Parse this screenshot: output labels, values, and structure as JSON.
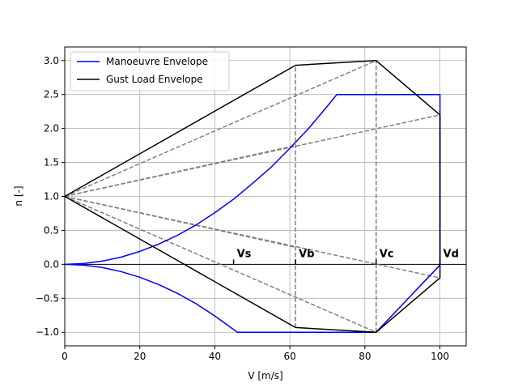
{
  "chart_data": {
    "type": "line",
    "xlabel": "V [m/s]",
    "ylabel": "n [-]",
    "xlim": [
      0,
      107
    ],
    "ylim": [
      -1.2,
      3.2
    ],
    "xticks": [
      0,
      20,
      40,
      60,
      80,
      100
    ],
    "yticks": [
      -1.0,
      -0.5,
      0.0,
      0.5,
      1.0,
      1.5,
      2.0,
      2.5,
      3.0
    ],
    "grid": true,
    "legend_position": "top-left",
    "colors": {
      "manoeuvre": "#0000ff",
      "gust": "#000000",
      "gust_lines": "#808080",
      "zero": "#000000",
      "grid": "#b0b0b0"
    },
    "series": [
      {
        "name": "Manoeuvre Envelope",
        "color": "#0000ff",
        "points": [
          [
            0,
            0
          ],
          [
            5,
            0.012
          ],
          [
            10,
            0.047
          ],
          [
            15,
            0.106
          ],
          [
            20,
            0.19
          ],
          [
            25,
            0.297
          ],
          [
            30,
            0.427
          ],
          [
            35,
            0.58
          ],
          [
            40,
            0.76
          ],
          [
            45,
            0.96
          ],
          [
            50,
            1.19
          ],
          [
            55,
            1.43
          ],
          [
            60,
            1.71
          ],
          [
            65,
            2.0
          ],
          [
            70,
            2.33
          ],
          [
            72.5,
            2.5
          ],
          [
            100,
            2.5
          ],
          [
            100,
            -0.01
          ],
          [
            83,
            -1.0
          ],
          [
            46,
            -1.0
          ],
          [
            45,
            -0.96
          ],
          [
            40,
            -0.76
          ],
          [
            35,
            -0.58
          ],
          [
            30,
            -0.427
          ],
          [
            25,
            -0.297
          ],
          [
            20,
            -0.19
          ],
          [
            15,
            -0.106
          ],
          [
            10,
            -0.047
          ],
          [
            5,
            -0.012
          ],
          [
            0,
            0
          ]
        ]
      },
      {
        "name": "Gust Load Envelope",
        "color": "#000000",
        "points": [
          [
            0,
            1.0
          ],
          [
            61.5,
            2.93
          ],
          [
            83,
            3.0
          ],
          [
            100,
            2.2
          ],
          [
            100,
            -0.2
          ],
          [
            83,
            -1.0
          ],
          [
            61.5,
            -0.93
          ],
          [
            0,
            1.0
          ]
        ]
      }
    ],
    "gust_lines": [
      [
        [
          0,
          1.0
        ],
        [
          61.5,
          1.75
        ]
      ],
      [
        [
          0,
          1.0
        ],
        [
          83,
          3.0
        ]
      ],
      [
        [
          0,
          1.0
        ],
        [
          100,
          2.2
        ]
      ],
      [
        [
          0,
          1.0
        ],
        [
          100,
          -0.2
        ]
      ],
      [
        [
          0,
          1.0
        ],
        [
          83,
          -1.0
        ]
      ],
      [
        [
          0,
          1.0
        ],
        [
          61.5,
          0.25
        ]
      ]
    ],
    "vertical_dashed": [
      {
        "x": 61.5,
        "y0": -0.93,
        "y1": 2.93
      },
      {
        "x": 83,
        "y0": -1.0,
        "y1": 3.0
      }
    ],
    "zero_line": {
      "x0": 0,
      "x1": 107,
      "y": 0
    },
    "speed_markers": [
      {
        "label": "Vs",
        "x": 45
      },
      {
        "label": "Vb",
        "x": 61.5
      },
      {
        "label": "Vc",
        "x": 83
      },
      {
        "label": "Vd",
        "x": 100
      }
    ]
  }
}
